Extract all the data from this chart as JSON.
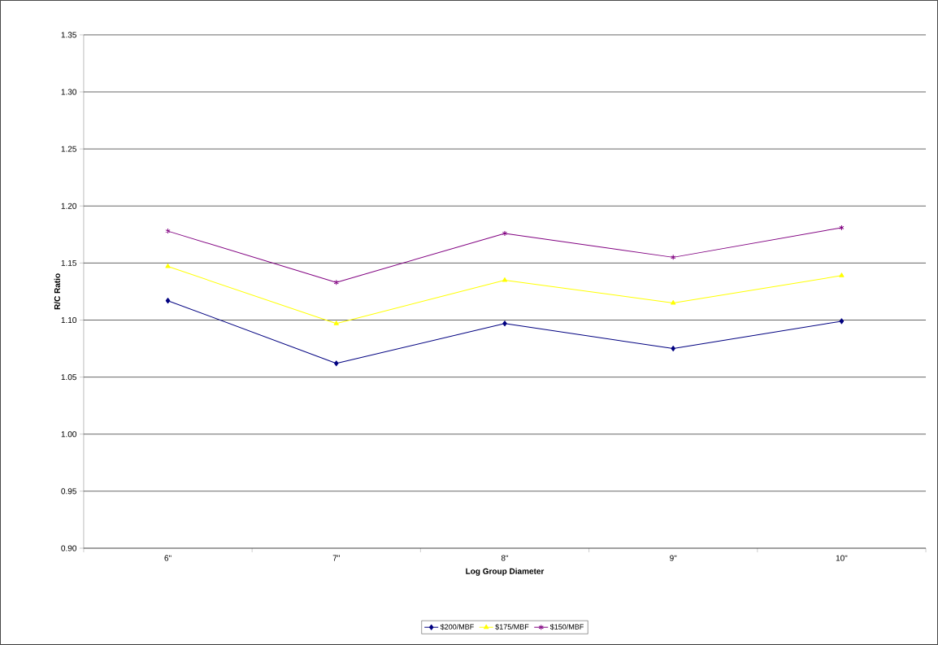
{
  "chart_data": {
    "type": "line",
    "xlabel": "Log Group Diameter",
    "ylabel": "R/C Ratio",
    "categories": [
      "6\"",
      "7\"",
      "8\"",
      "9\"",
      "10\""
    ],
    "series": [
      {
        "name": "$200/MBF",
        "color": "#000080",
        "marker": "diamond",
        "values": [
          1.117,
          1.062,
          1.097,
          1.075,
          1.099
        ]
      },
      {
        "name": "$175/MBF",
        "color": "#ffff00",
        "marker": "triangle",
        "values": [
          1.147,
          1.097,
          1.135,
          1.115,
          1.139
        ]
      },
      {
        "name": "$150/MBF",
        "color": "#800080",
        "marker": "cross",
        "values": [
          1.178,
          1.133,
          1.176,
          1.155,
          1.181
        ]
      }
    ],
    "ylim": [
      0.9,
      1.35
    ],
    "yticks": [
      {
        "value": 0.9,
        "label": "0.90"
      },
      {
        "value": 0.95,
        "label": "0.95"
      },
      {
        "value": 1.0,
        "label": "1.00"
      },
      {
        "value": 1.05,
        "label": "1.05"
      },
      {
        "value": 1.1,
        "label": "1.10"
      },
      {
        "value": 1.15,
        "label": "1.15"
      },
      {
        "value": 1.2,
        "label": "1.20"
      },
      {
        "value": 1.25,
        "label": "1.25"
      },
      {
        "value": 1.3,
        "label": "1.30"
      },
      {
        "value": 1.35,
        "label": "1.35"
      }
    ],
    "grid": "y",
    "legend": "bottom",
    "line_style": "solid"
  }
}
